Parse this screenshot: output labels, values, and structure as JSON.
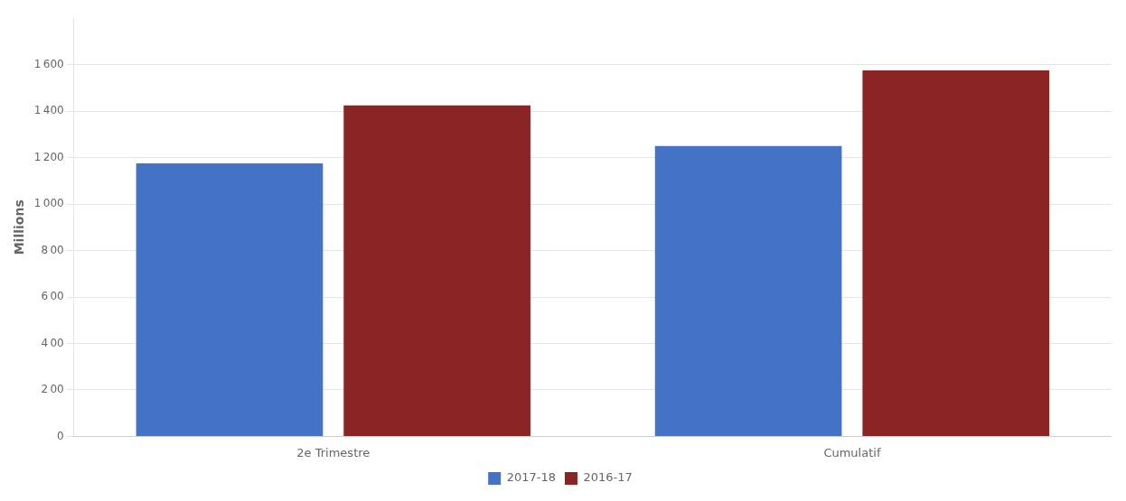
{
  "chart_data": {
    "type": "bar",
    "categories": [
      "2e Trimestre",
      "Cumulatif"
    ],
    "series": [
      {
        "name": "2017-18",
        "color": "#4472C4",
        "values": [
          1175,
          1250
        ]
      },
      {
        "name": "2016-17",
        "color": "#8B2525",
        "values": [
          1425,
          1575
        ]
      }
    ],
    "ylabel": "Millions",
    "ylim": [
      0,
      1800
    ],
    "yticks": [
      0,
      {
        "value": 200,
        "label": "2 00"
      },
      {
        "value": 400,
        "label": "4 00"
      },
      {
        "value": 600,
        "label": "6 00"
      },
      {
        "value": 800,
        "label": "8 00"
      },
      {
        "value": 1000,
        "label": "1 000"
      },
      {
        "value": 1200,
        "label": "1 200"
      },
      {
        "value": 1400,
        "label": "1 400"
      },
      {
        "value": 1600,
        "label": "1 600"
      }
    ],
    "grid": true,
    "legend": "bottom"
  }
}
